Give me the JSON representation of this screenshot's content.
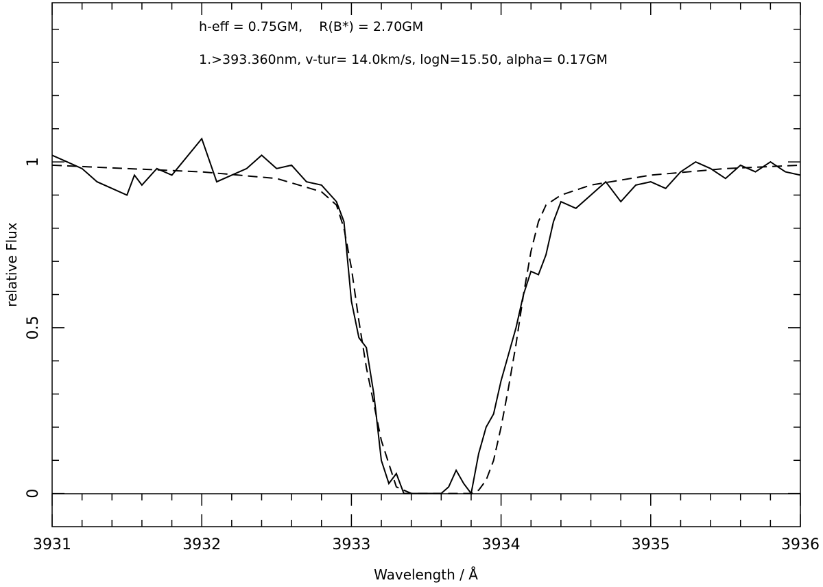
{
  "chart_data": {
    "type": "line",
    "title": "",
    "xlabel": "Wavelength / Å",
    "ylabel": "relative Flux",
    "xlim": [
      3931,
      3936
    ],
    "ylim": [
      -0.1,
      1.48
    ],
    "grid": false,
    "x_ticks": [
      "3931",
      "3932",
      "3933",
      "3934",
      "3935",
      "3936"
    ],
    "y_ticks": [
      "0",
      "0.5",
      "1"
    ],
    "annotations": [
      "h-eff = 0.75GM,    R(B*) = 2.70GM",
      "1.>393.360nm, v-tur= 14.0km/s, logN=15.50, alpha= 0.17GM"
    ],
    "series": [
      {
        "style": "solid",
        "x": [
          3931.0,
          3931.1,
          3931.2,
          3931.3,
          3931.4,
          3931.5,
          3931.55,
          3931.6,
          3931.7,
          3931.8,
          3932.0,
          3932.1,
          3932.2,
          3932.3,
          3932.4,
          3932.5,
          3932.6,
          3932.7,
          3932.8,
          3932.9,
          3932.95,
          3933.0,
          3933.05,
          3933.1,
          3933.15,
          3933.2,
          3933.25,
          3933.3,
          3933.35,
          3933.4,
          3933.5,
          3933.6,
          3933.65,
          3933.7,
          3933.75,
          3933.8,
          3933.85,
          3933.9,
          3933.95,
          3934.0,
          3934.05,
          3934.1,
          3934.15,
          3934.2,
          3934.25,
          3934.3,
          3934.35,
          3934.4,
          3934.5,
          3934.6,
          3934.7,
          3934.8,
          3934.9,
          3935.0,
          3935.1,
          3935.2,
          3935.3,
          3935.4,
          3935.5,
          3935.6,
          3935.7,
          3935.8,
          3935.9,
          3936.0
        ],
        "y": [
          1.02,
          1.0,
          0.98,
          0.94,
          0.92,
          0.9,
          0.96,
          0.93,
          0.98,
          0.96,
          1.07,
          0.94,
          0.96,
          0.98,
          1.02,
          0.98,
          0.99,
          0.94,
          0.93,
          0.88,
          0.82,
          0.58,
          0.47,
          0.44,
          0.3,
          0.1,
          0.03,
          0.06,
          0.0,
          0.0,
          0.0,
          0.0,
          0.02,
          0.07,
          0.03,
          0.0,
          0.12,
          0.2,
          0.24,
          0.34,
          0.42,
          0.5,
          0.6,
          0.67,
          0.66,
          0.72,
          0.82,
          0.88,
          0.86,
          0.9,
          0.94,
          0.88,
          0.93,
          0.94,
          0.92,
          0.97,
          1.0,
          0.98,
          0.95,
          0.99,
          0.97,
          1.0,
          0.97,
          0.96
        ]
      },
      {
        "style": "dashed",
        "x": [
          3931.0,
          3931.5,
          3932.0,
          3932.5,
          3932.8,
          3932.9,
          3932.95,
          3933.0,
          3933.05,
          3933.1,
          3933.2,
          3933.3,
          3933.4,
          3933.5,
          3933.6,
          3933.7,
          3933.8,
          3933.85,
          3933.9,
          3933.95,
          3934.0,
          3934.05,
          3934.1,
          3934.15,
          3934.2,
          3934.25,
          3934.3,
          3934.4,
          3934.6,
          3935.0,
          3935.5,
          3936.0
        ],
        "y": [
          0.99,
          0.98,
          0.97,
          0.95,
          0.91,
          0.87,
          0.8,
          0.68,
          0.52,
          0.38,
          0.16,
          0.02,
          0.0,
          0.0,
          0.0,
          0.0,
          0.0,
          0.01,
          0.04,
          0.1,
          0.2,
          0.32,
          0.45,
          0.6,
          0.73,
          0.82,
          0.87,
          0.9,
          0.93,
          0.96,
          0.98,
          0.99
        ]
      }
    ]
  }
}
